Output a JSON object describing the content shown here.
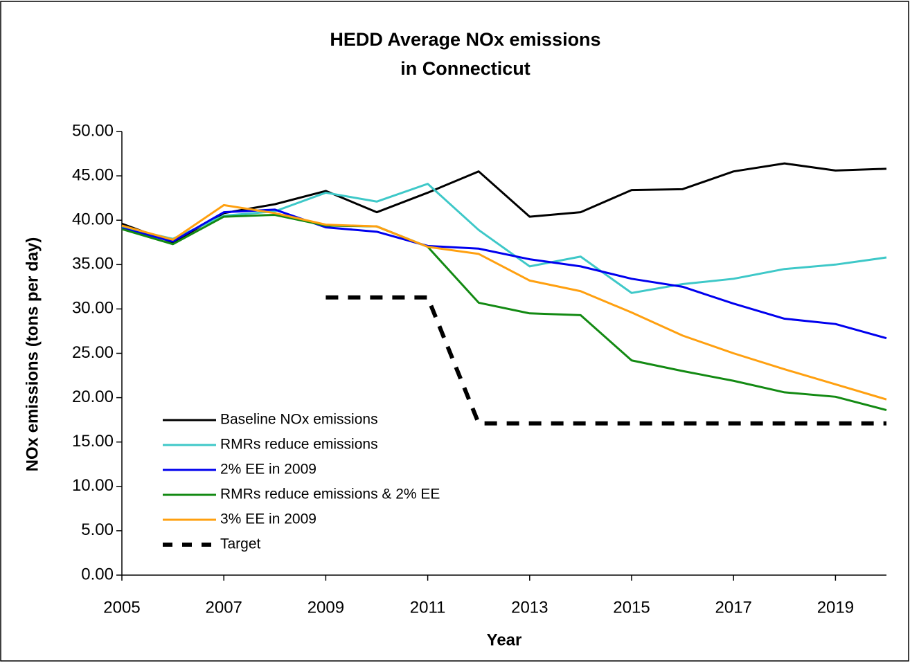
{
  "chart_data": {
    "type": "line",
    "title": [
      "HEDD Average NOx emissions",
      "in Connecticut"
    ],
    "xlabel": "Year",
    "ylabel": "NOx emissions (tons per day)",
    "x": [
      2005,
      2006,
      2007,
      2008,
      2009,
      2010,
      2011,
      2012,
      2013,
      2014,
      2015,
      2016,
      2017,
      2018,
      2019,
      2020
    ],
    "xlim": [
      2005,
      2020
    ],
    "xticks": [
      2005,
      2007,
      2009,
      2011,
      2013,
      2015,
      2017,
      2019
    ],
    "ylim": [
      0,
      50
    ],
    "yticks": [
      {
        "value": 0,
        "label": "0.00"
      },
      {
        "value": 5,
        "label": "5.00"
      },
      {
        "value": 10,
        "label": "10.00"
      },
      {
        "value": 15,
        "label": "15.00"
      },
      {
        "value": 20,
        "label": "20.00"
      },
      {
        "value": 25,
        "label": "25.00"
      },
      {
        "value": 30,
        "label": "30.00"
      },
      {
        "value": 35,
        "label": "35.00"
      },
      {
        "value": 40,
        "label": "40.00"
      },
      {
        "value": 45,
        "label": "45.00"
      },
      {
        "value": 50,
        "label": "50.00"
      }
    ],
    "grid": false,
    "legend": "lower left",
    "series": [
      {
        "name": "Baseline NOx emissions",
        "color": "#000000",
        "values": [
          39.6,
          37.5,
          40.8,
          41.8,
          43.3,
          40.9,
          43.1,
          45.5,
          40.4,
          40.9,
          43.4,
          43.5,
          45.5,
          46.4,
          45.6,
          45.8
        ]
      },
      {
        "name": "RMRs reduce emissions",
        "color": "#3ec8c8",
        "values": [
          39.2,
          37.9,
          40.5,
          41.0,
          43.1,
          42.1,
          44.1,
          38.9,
          34.8,
          35.9,
          31.8,
          32.8,
          33.4,
          34.5,
          35.0,
          35.8
        ]
      },
      {
        "name": "2% EE in 2009",
        "color": "#0000ee",
        "values": [
          39.1,
          37.6,
          40.9,
          41.2,
          39.2,
          38.7,
          37.1,
          36.8,
          35.6,
          34.8,
          33.4,
          32.5,
          30.6,
          28.9,
          28.3,
          26.7
        ]
      },
      {
        "name": "RMRs reduce emissions & 2% EE",
        "color": "#138a13",
        "values": [
          39.0,
          37.3,
          40.4,
          40.6,
          39.4,
          39.3,
          37.0,
          30.7,
          29.5,
          29.3,
          24.2,
          23.0,
          21.9,
          20.6,
          20.1,
          18.6
        ]
      },
      {
        "name": "3% EE in 2009",
        "color": "#ffa010",
        "values": [
          39.4,
          37.8,
          41.7,
          40.8,
          39.5,
          39.3,
          37.0,
          36.2,
          33.2,
          32.0,
          29.6,
          27.0,
          25.0,
          23.2,
          21.5,
          19.8
        ]
      },
      {
        "name": "Target",
        "color": "#000000",
        "dashed": true,
        "values": [
          null,
          null,
          null,
          null,
          31.3,
          31.3,
          31.3,
          17.1,
          17.1,
          17.1,
          17.1,
          17.1,
          17.1,
          17.1,
          17.1,
          17.1
        ]
      }
    ]
  }
}
